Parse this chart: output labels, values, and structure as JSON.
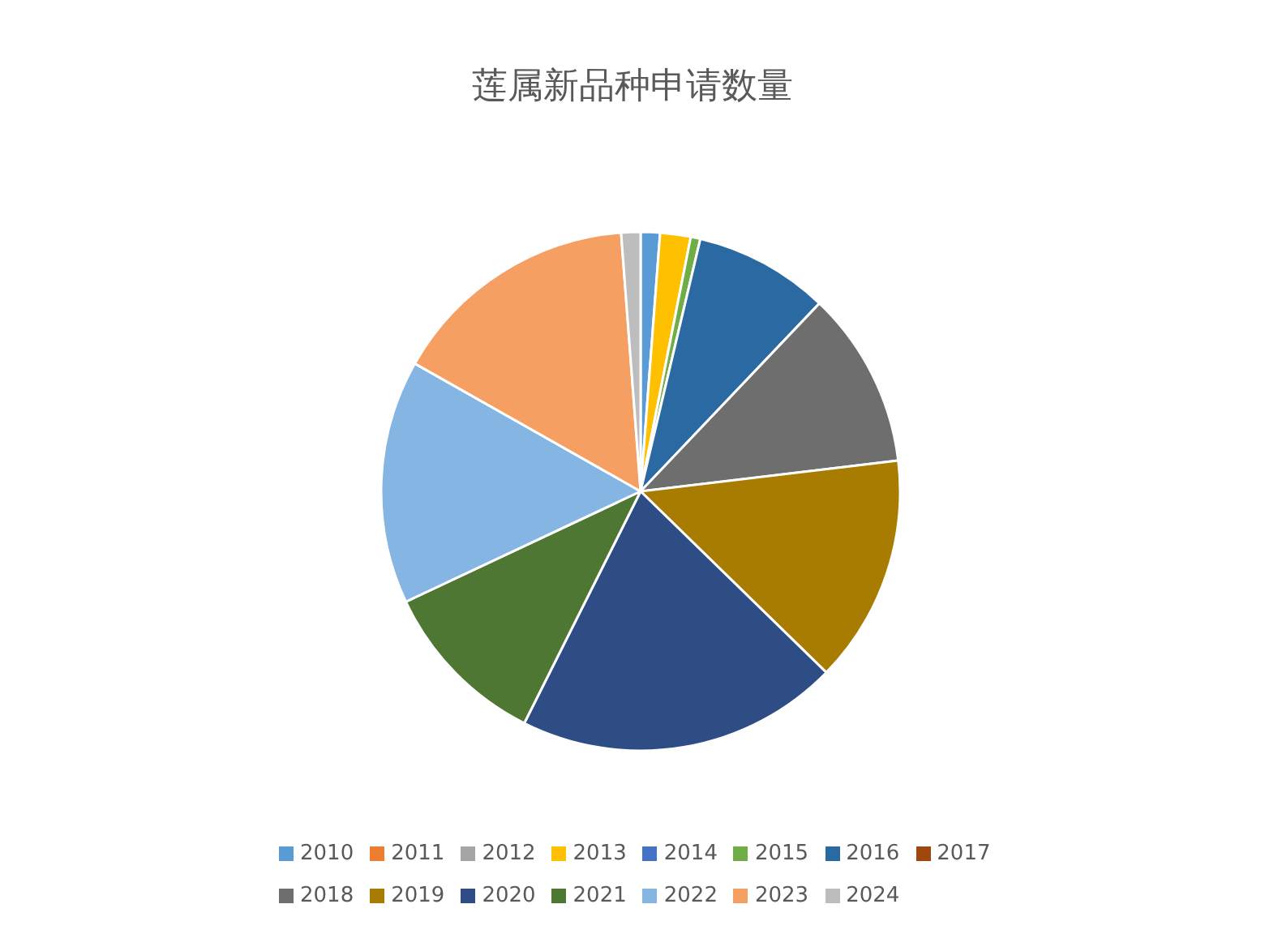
{
  "chart_data": {
    "type": "pie",
    "title": "莲属新品种申请数量",
    "categories": [
      "2010",
      "2011",
      "2012",
      "2013",
      "2014",
      "2015",
      "2016",
      "2017",
      "2018",
      "2019",
      "2020",
      "2021",
      "2022",
      "2023",
      "2024"
    ],
    "values": [
      1.2,
      0,
      0,
      1.9,
      0,
      0.6,
      8.4,
      0,
      11.0,
      14.2,
      20.1,
      10.6,
      15.2,
      15.6,
      1.2
    ],
    "colors": [
      "#5b9bd5",
      "#ed7d31",
      "#a5a5a5",
      "#ffc000",
      "#4472c4",
      "#70ad47",
      "#2a69a2",
      "#9e480e",
      "#6e6e6e",
      "#a87c00",
      "#2f4d85",
      "#4d7733",
      "#84b5e3",
      "#f5a062",
      "#bdbdbd"
    ],
    "legend": "bottom"
  }
}
